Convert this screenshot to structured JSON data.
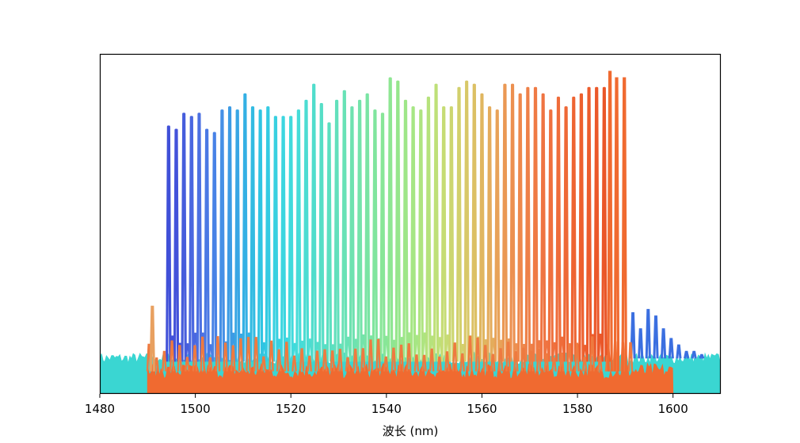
{
  "chart_data": {
    "type": "line",
    "title": "",
    "xlabel": "波长 (nm)",
    "ylabel": "",
    "xlim": [
      1480,
      1610
    ],
    "ylim": [
      0,
      1
    ],
    "x_ticks": [
      1480,
      1500,
      1520,
      1540,
      1560,
      1580,
      1600
    ],
    "grid": false,
    "legend": "none",
    "peak_spacing_nm": 1.6,
    "series": [
      {
        "color": "#f06a30",
        "lambda_min": 1490,
        "lambda_max": 1600,
        "floor": 0.07,
        "peaks": [
          {
            "x": 1491.0,
            "y": 0.27
          },
          {
            "x": 1586.8,
            "y": 1.0
          },
          {
            "x": 1588.2,
            "y": 0.98
          },
          {
            "x": 1589.8,
            "y": 0.98
          }
        ]
      },
      {
        "color": "#3ad6d2",
        "lambda_min": 1480,
        "lambda_max": 1610,
        "floor": 0.11,
        "peaks": [
          {
            "x": 1591.6,
            "y": 0.25
          },
          {
            "x": 1593.2,
            "y": 0.2
          },
          {
            "x": 1594.8,
            "y": 0.26
          },
          {
            "x": 1596.4,
            "y": 0.24
          },
          {
            "x": 1598.0,
            "y": 0.2
          },
          {
            "x": 1599.6,
            "y": 0.17
          },
          {
            "x": 1601.2,
            "y": 0.15
          },
          {
            "x": 1602.8,
            "y": 0.13
          },
          {
            "x": 1604.4,
            "y": 0.13
          },
          {
            "x": 1606.0,
            "y": 0.12
          }
        ]
      },
      {
        "color": "multi",
        "floor": 0.1,
        "channels_x": [
          1494.4,
          1496.0,
          1497.6,
          1499.2,
          1500.8,
          1502.4,
          1504.0,
          1505.6,
          1507.2,
          1508.8,
          1510.4,
          1512.0,
          1513.6,
          1515.2,
          1516.8,
          1518.4,
          1520.0,
          1521.6,
          1523.2,
          1524.8,
          1526.4,
          1528.0,
          1529.6,
          1531.2,
          1532.8,
          1534.4,
          1536.0,
          1537.6,
          1539.2,
          1540.8,
          1542.4,
          1544.0,
          1545.6,
          1547.2,
          1548.8,
          1550.4,
          1552.0,
          1553.6,
          1555.2,
          1556.8,
          1558.4,
          1560.0,
          1561.6,
          1563.2,
          1564.8,
          1566.4,
          1568.0,
          1569.6,
          1571.2,
          1572.8,
          1574.4,
          1576.0,
          1577.6,
          1579.2,
          1580.8,
          1582.4,
          1584.0,
          1585.6
        ],
        "channels_y": [
          0.83,
          0.82,
          0.87,
          0.86,
          0.87,
          0.82,
          0.81,
          0.88,
          0.89,
          0.88,
          0.93,
          0.89,
          0.88,
          0.89,
          0.86,
          0.86,
          0.86,
          0.88,
          0.91,
          0.96,
          0.9,
          0.84,
          0.91,
          0.94,
          0.89,
          0.91,
          0.93,
          0.88,
          0.87,
          0.98,
          0.97,
          0.91,
          0.89,
          0.88,
          0.92,
          0.96,
          0.89,
          0.89,
          0.95,
          0.97,
          0.96,
          0.93,
          0.89,
          0.88,
          0.96,
          0.96,
          0.93,
          0.95,
          0.95,
          0.93,
          0.88,
          0.92,
          0.89,
          0.92,
          0.93,
          0.95,
          0.95,
          0.95
        ],
        "channels_color": [
          "#4050d8",
          "#4352da",
          "#465ddc",
          "#4a67e0",
          "#4c70e2",
          "#4a78e4",
          "#4882e6",
          "#4690e6",
          "#3c9be4",
          "#38a6e4",
          "#34b0e4",
          "#32bbe2",
          "#30c4e2",
          "#34cbe2",
          "#38d0e0",
          "#3cd6e0",
          "#40dadc",
          "#46dcd8",
          "#4cdcd2",
          "#50ddcc",
          "#56dec6",
          "#5cdfc0",
          "#62e0bc",
          "#68e2b6",
          "#6ee2b0",
          "#74e3aa",
          "#7ae4a4",
          "#80e59e",
          "#88e698",
          "#8ee692",
          "#96e68c",
          "#9ee688",
          "#a6e684",
          "#aee480",
          "#b6e27c",
          "#bee078",
          "#c6dc74",
          "#ccd670",
          "#d2d06c",
          "#d8c868",
          "#dcc064",
          "#e0b660",
          "#e4ac5c",
          "#e8a258",
          "#ea9854",
          "#ec9050",
          "#ee884c",
          "#ee8048",
          "#ef7a44",
          "#ef7442",
          "#ef703e",
          "#ef6c3a",
          "#ee6836",
          "#ee6432",
          "#ed602e",
          "#ec5c2c",
          "#eb582a",
          "#ea5628"
        ]
      }
    ]
  }
}
